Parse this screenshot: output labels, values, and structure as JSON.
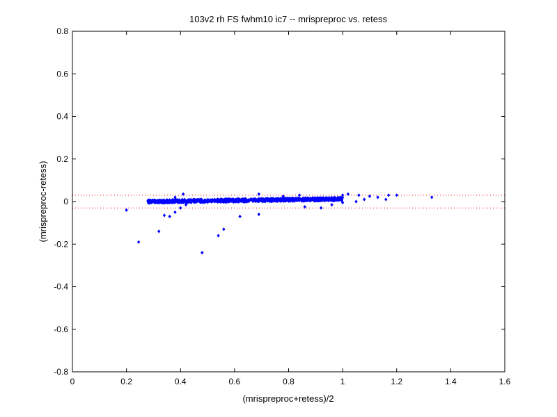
{
  "chart_data": {
    "type": "scatter",
    "title": "103v2 rh FS fwhm10 ic7 -- mrispreproc vs. retess",
    "xlabel": "(mrispreproc+retess)/2",
    "ylabel": "(mrispreproc-retess)",
    "xlim": [
      0,
      1.6
    ],
    "ylim": [
      -0.8,
      0.8
    ],
    "x_ticks": [
      "0",
      "0.2",
      "0.4",
      "0.6",
      "0.8",
      "1",
      "1.2",
      "1.4",
      "1.6"
    ],
    "y_ticks": [
      "0.8",
      "0.6",
      "0.4",
      "0.2",
      "0",
      "-0.2",
      "-0.4",
      "-0.6",
      "-0.8"
    ],
    "grid": false,
    "reference_lines": [
      0.03,
      -0.03
    ],
    "colors": {
      "points": "#0000ff",
      "reference_lines": "#ff0000",
      "axes": "#000000"
    },
    "series": [
      {
        "marker": "diamond",
        "points": [
          [
            0.2,
            -0.04
          ],
          [
            0.245,
            -0.19
          ],
          [
            0.32,
            -0.14
          ],
          [
            0.34,
            -0.065
          ],
          [
            0.36,
            -0.07
          ],
          [
            0.38,
            -0.05
          ],
          [
            0.4,
            -0.03
          ],
          [
            0.42,
            -0.015
          ],
          [
            0.48,
            -0.24
          ],
          [
            0.54,
            -0.16
          ],
          [
            0.56,
            -0.13
          ],
          [
            0.62,
            -0.07
          ],
          [
            0.69,
            -0.06
          ],
          [
            0.38,
            0.02
          ],
          [
            0.41,
            0.035
          ],
          [
            0.86,
            -0.025
          ],
          [
            0.92,
            -0.03
          ],
          [
            0.96,
            -0.015
          ],
          [
            1.0,
            -0.005
          ],
          [
            1.05,
            0.0
          ],
          [
            1.08,
            0.01
          ],
          [
            1.13,
            0.02
          ],
          [
            1.16,
            0.01
          ],
          [
            1.17,
            0.03
          ],
          [
            1.2,
            0.03
          ],
          [
            1.33,
            0.02
          ],
          [
            1.06,
            0.03
          ],
          [
            1.1,
            0.025
          ],
          [
            1.02,
            0.035
          ],
          [
            1.0,
            0.03
          ],
          [
            0.69,
            0.035
          ],
          [
            0.78,
            0.025
          ],
          [
            0.84,
            0.03
          ]
        ]
      }
    ]
  }
}
